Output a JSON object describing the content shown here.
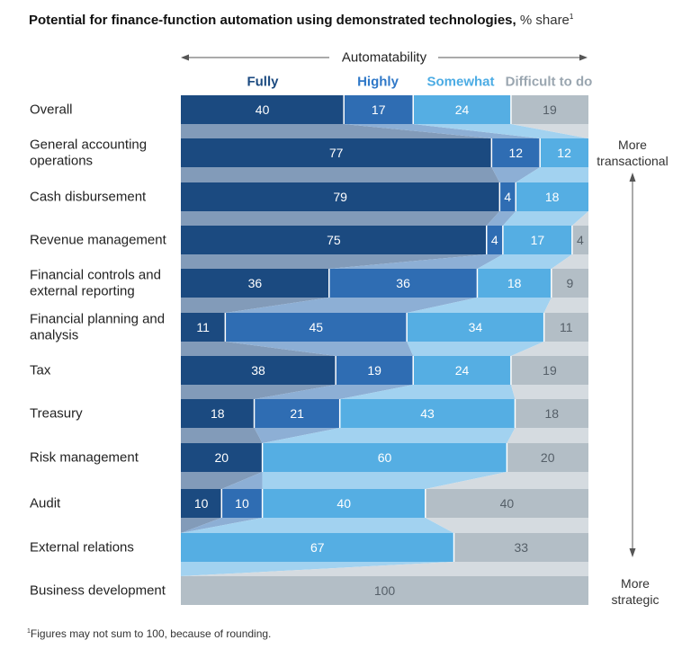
{
  "title": "Potential for finance-function automation using demonstrated technologies,",
  "title_unit": "% share",
  "title_note_marker": "1",
  "footnote_marker": "1",
  "footnote": "Figures may not sum to 100, because of rounding.",
  "colors": {
    "fully": "#1b4a80",
    "highly": "#2f6db3",
    "somewhat": "#55aee3",
    "difficult": "#b3bec6",
    "fully_text": "#1b4a80",
    "highly_text": "#2f78c8",
    "somewhat_text": "#4cace4",
    "difficult_text": "#9aa6b0"
  },
  "chart_data": {
    "type": "bar",
    "stacked": true,
    "orientation": "horizontal",
    "axis_label": "Automatability",
    "categories": [
      "Overall",
      "General accounting operations",
      "Cash disbursement",
      "Revenue management",
      "Financial controls and external reporting",
      "Financial planning and analysis",
      "Tax",
      "Treasury",
      "Risk management",
      "Audit",
      "External relations",
      "Business development"
    ],
    "series": [
      {
        "name": "Fully",
        "values": [
          40,
          77,
          79,
          75,
          36,
          11,
          38,
          18,
          20,
          10,
          0,
          0
        ]
      },
      {
        "name": "Highly",
        "values": [
          17,
          12,
          4,
          4,
          36,
          45,
          19,
          21,
          0,
          10,
          0,
          0
        ]
      },
      {
        "name": "Somewhat",
        "values": [
          24,
          12,
          18,
          17,
          18,
          34,
          24,
          43,
          60,
          40,
          67,
          0
        ]
      },
      {
        "name": "Difficult to do",
        "values": [
          19,
          0,
          0,
          4,
          9,
          11,
          19,
          18,
          20,
          40,
          33,
          100
        ]
      }
    ],
    "xlim": [
      0,
      100
    ],
    "side_annotations": {
      "top": "More transactional",
      "bottom": "More strategic"
    }
  }
}
